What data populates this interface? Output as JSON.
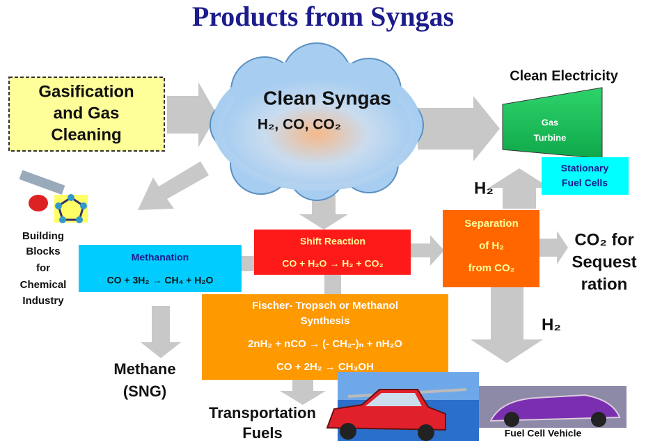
{
  "title": "Products from Syngas",
  "gasification": [
    "Gasification",
    "and Gas",
    "Cleaning"
  ],
  "syngas": {
    "name": "Clean Syngas",
    "formula": "H₂, CO, CO₂"
  },
  "electricity": {
    "label": "Clean Electricity",
    "turbine": [
      "Gas",
      "Turbine"
    ],
    "fuel_cells": [
      "Stationary",
      "Fuel Cells"
    ]
  },
  "h2_labels": [
    "H₂",
    "H₂"
  ],
  "building_blocks": [
    "Building",
    "Blocks",
    "for",
    "Chemical",
    "Industry"
  ],
  "methanation": {
    "title": "Methanation",
    "equation": "CO + 3H₂ → CH₄ + H₂O"
  },
  "shift": {
    "title": "Shift Reaction",
    "equation": "CO + H₂O → H₂ + CO₂"
  },
  "separation": [
    "Separation",
    "of H₂",
    "from CO₂"
  ],
  "sequestration": [
    "CO₂ for",
    "Sequest",
    "ration"
  ],
  "synthesis": {
    "title": [
      "Fischer- Tropsch or Methanol",
      "Synthesis"
    ],
    "equations": [
      "2nH₂ + nCO → (- CH₂-)ₙ + nH₂O",
      "CO + 2H₂ → CH₃OH"
    ]
  },
  "methane": [
    "Methane",
    "(SNG)"
  ],
  "transportation": [
    "Transportation",
    "Fuels"
  ],
  "vehicle": "Fuel Cell Vehicle"
}
